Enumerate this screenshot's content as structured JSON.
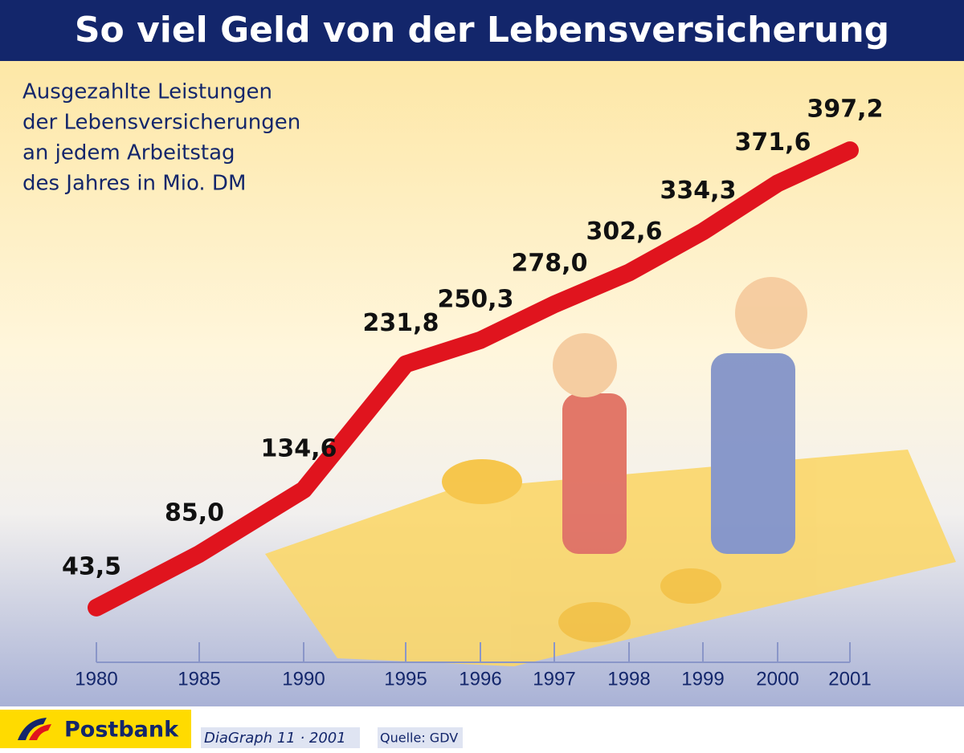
{
  "chart_data": {
    "type": "line",
    "title": "So viel Geld von der Lebensversicherung",
    "description": [
      "Ausgezahlte Leistungen",
      "der Lebensversicherungen",
      "an jedem Arbeitstag",
      "des Jahres in Mio. DM"
    ],
    "categories": [
      "1980",
      "1985",
      "1990",
      "1995",
      "1996",
      "1997",
      "1998",
      "1999",
      "2000",
      "2001"
    ],
    "series": [
      {
        "color": "#e0141e",
        "values": [
          43.5,
          85.0,
          134.6,
          231.8,
          250.3,
          278.0,
          302.6,
          334.3,
          371.6,
          397.2
        ],
        "value_labels": [
          "43,5",
          "85,0",
          "134,6",
          "231,8",
          "250,3",
          "278,0",
          "302,6",
          "334,3",
          "371,6",
          "397,2"
        ]
      }
    ],
    "brand": "Postbank",
    "credit": "DiaGraph 11 · 2001",
    "source": "Quelle: GDV"
  }
}
